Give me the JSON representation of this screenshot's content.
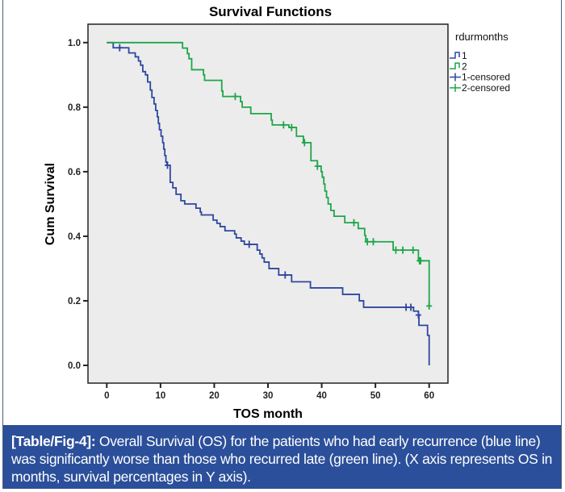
{
  "chart_data": {
    "type": "line",
    "subtype": "kaplan-meier-step",
    "title": "Survival Functions",
    "xlabel": "TOS month",
    "ylabel": "Cum Survival",
    "xlim": [
      -3.5,
      63.5
    ],
    "ylim": [
      -0.055,
      1.057
    ],
    "xticks": [
      0,
      10,
      20,
      30,
      40,
      50,
      60
    ],
    "yticks": [
      0.0,
      0.2,
      0.4,
      0.6,
      0.8,
      1.0
    ],
    "ytick_labels": [
      "0.0",
      "0.2",
      "0.4",
      "0.6",
      "0.8",
      "1.0"
    ],
    "grid": false,
    "legend": {
      "title": "rdurmonths",
      "position": "right",
      "entries": [
        {
          "label": "1",
          "kind": "step",
          "color": "#2e47a0"
        },
        {
          "label": "2",
          "kind": "step",
          "color": "#1fa64a"
        },
        {
          "label": "1-censored",
          "kind": "censor",
          "color": "#2e47a0"
        },
        {
          "label": "2-censored",
          "kind": "censor",
          "color": "#1fa64a"
        }
      ]
    },
    "series": [
      {
        "name": "1",
        "color": "#2e47a0",
        "steps": [
          [
            0,
            1.0
          ],
          [
            1.2,
            0.984
          ],
          [
            4.1,
            0.968
          ],
          [
            5.3,
            0.956
          ],
          [
            5.9,
            0.943
          ],
          [
            6.3,
            0.93
          ],
          [
            6.7,
            0.91
          ],
          [
            7.2,
            0.9
          ],
          [
            7.6,
            0.878
          ],
          [
            8.1,
            0.853
          ],
          [
            8.4,
            0.83
          ],
          [
            8.8,
            0.81
          ],
          [
            9.1,
            0.79
          ],
          [
            9.4,
            0.77
          ],
          [
            9.6,
            0.75
          ],
          [
            9.8,
            0.73
          ],
          [
            10.1,
            0.71
          ],
          [
            10.4,
            0.69
          ],
          [
            10.6,
            0.67
          ],
          [
            10.8,
            0.65
          ],
          [
            11.0,
            0.63
          ],
          [
            11.2,
            0.62
          ],
          [
            11.8,
            0.567
          ],
          [
            12.3,
            0.55
          ],
          [
            12.9,
            0.53
          ],
          [
            13.8,
            0.51
          ],
          [
            14.5,
            0.5
          ],
          [
            16.6,
            0.487
          ],
          [
            17.4,
            0.475
          ],
          [
            17.6,
            0.466
          ],
          [
            19.8,
            0.45
          ],
          [
            20.5,
            0.44
          ],
          [
            21.1,
            0.43
          ],
          [
            22.0,
            0.417
          ],
          [
            23.8,
            0.407
          ],
          [
            24.1,
            0.395
          ],
          [
            25.0,
            0.385
          ],
          [
            25.6,
            0.375
          ],
          [
            28.0,
            0.357
          ],
          [
            28.5,
            0.345
          ],
          [
            28.9,
            0.333
          ],
          [
            29.3,
            0.32
          ],
          [
            30.2,
            0.3
          ],
          [
            32.0,
            0.28
          ],
          [
            34.4,
            0.259
          ],
          [
            37.9,
            0.24
          ],
          [
            43.9,
            0.22
          ],
          [
            47.0,
            0.2
          ],
          [
            47.8,
            0.18
          ],
          [
            57.1,
            0.168
          ],
          [
            58.0,
            0.156
          ],
          [
            58.1,
            0.124
          ],
          [
            59.7,
            0.093
          ],
          [
            60.0,
            0.0
          ]
        ],
        "censored": [
          [
            2.4,
            0.984
          ],
          [
            11.3,
            0.62
          ],
          [
            26.5,
            0.375
          ],
          [
            33.2,
            0.28
          ],
          [
            55.7,
            0.18
          ],
          [
            56.6,
            0.18
          ],
          [
            58.0,
            0.156
          ]
        ]
      },
      {
        "name": "2",
        "color": "#1fa64a",
        "steps": [
          [
            0,
            1.0
          ],
          [
            14.1,
            0.983
          ],
          [
            15.0,
            0.966
          ],
          [
            15.3,
            0.95
          ],
          [
            15.8,
            0.916
          ],
          [
            18.0,
            0.9
          ],
          [
            18.2,
            0.883
          ],
          [
            21.4,
            0.85
          ],
          [
            21.6,
            0.833
          ],
          [
            24.9,
            0.817
          ],
          [
            25.2,
            0.8
          ],
          [
            26.8,
            0.78
          ],
          [
            30.6,
            0.76
          ],
          [
            30.8,
            0.745
          ],
          [
            33.9,
            0.737
          ],
          [
            35.3,
            0.71
          ],
          [
            36.6,
            0.69
          ],
          [
            38.0,
            0.634
          ],
          [
            39.2,
            0.617
          ],
          [
            39.9,
            0.6
          ],
          [
            40.1,
            0.583
          ],
          [
            40.4,
            0.562
          ],
          [
            40.6,
            0.54
          ],
          [
            40.9,
            0.52
          ],
          [
            41.2,
            0.5
          ],
          [
            41.7,
            0.48
          ],
          [
            42.3,
            0.462
          ],
          [
            44.3,
            0.442
          ],
          [
            46.8,
            0.424
          ],
          [
            48.0,
            0.403
          ],
          [
            48.2,
            0.383
          ],
          [
            53.3,
            0.357
          ],
          [
            58.0,
            0.324
          ],
          [
            60.0,
            0.184
          ]
        ],
        "censored": [
          [
            23.9,
            0.833
          ],
          [
            32.9,
            0.745
          ],
          [
            34.4,
            0.737
          ],
          [
            36.8,
            0.69
          ],
          [
            39.2,
            0.617
          ],
          [
            46.0,
            0.442
          ],
          [
            48.5,
            0.383
          ],
          [
            49.6,
            0.383
          ],
          [
            53.8,
            0.357
          ],
          [
            55.1,
            0.357
          ],
          [
            57.0,
            0.357
          ],
          [
            58.2,
            0.324
          ],
          [
            58.4,
            0.324
          ],
          [
            60.0,
            0.184
          ]
        ]
      }
    ]
  },
  "caption": {
    "label": "[Table/Fig-4]:",
    "text": " Overall Survival (OS) for the patients who had early recurrence (blue line) was significantly worse than those who recurred late (green line). (X axis represents OS in months, survival percentages in Y axis)."
  },
  "colors": {
    "caption_bg": "#2b4f9a",
    "plot_bg": "#ececec"
  }
}
